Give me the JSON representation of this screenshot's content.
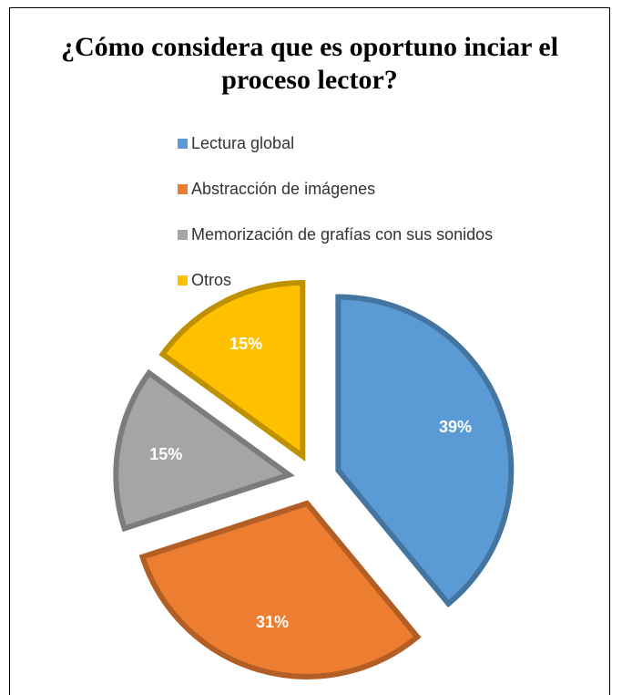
{
  "chart_data": {
    "type": "pie",
    "title": "¿Cómo considera que es oportuno inciar el proceso lector?",
    "categories": [
      "Lectura global",
      "Abstracción de imágenes",
      "Memorización de grafías con sus sonidos",
      "Otros"
    ],
    "values": [
      39,
      31,
      15,
      15
    ],
    "value_labels": [
      "39%",
      "31%",
      "15%",
      "15%"
    ],
    "colors": [
      "#5b9bd5",
      "#ed7d31",
      "#a5a5a5",
      "#ffc000"
    ],
    "legend": "top"
  }
}
